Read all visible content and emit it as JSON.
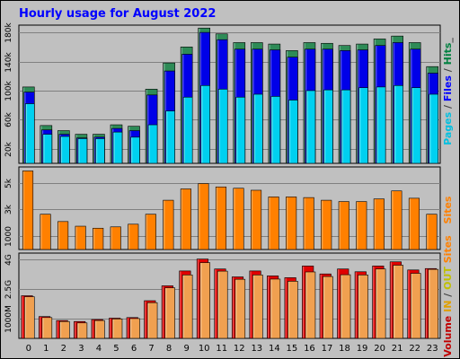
{
  "chart_data": {
    "type": "bar",
    "title": "Hourly usage for August 2022",
    "categories": [
      "0",
      "1",
      "2",
      "3",
      "4",
      "5",
      "6",
      "7",
      "8",
      "9",
      "10",
      "11",
      "12",
      "13",
      "14",
      "15",
      "16",
      "17",
      "18",
      "19",
      "20",
      "21",
      "22",
      "23"
    ],
    "panels": [
      {
        "name": "requests",
        "ylim": [
          0,
          190000
        ],
        "yticks": [
          20000,
          60000,
          100000,
          140000,
          180000
        ],
        "ytick_labels": [
          "20k",
          "60k",
          "100k",
          "140k",
          "180k"
        ],
        "side_label": [
          {
            "text": "Pages",
            "color": "#00c0e0"
          },
          {
            "text": " / ",
            "color": "#404040"
          },
          {
            "text": "Files",
            "color": "#0000ff"
          },
          {
            "text": " / ",
            "color": "#404040"
          },
          {
            "text": "Hits",
            "color": "#008040"
          },
          {
            "text": "_",
            "color": "#404040"
          }
        ],
        "series": [
          {
            "name": "Hits",
            "color": "#2e8b57",
            "values": [
              105000,
              52000,
              45000,
              40000,
              40000,
              53000,
              51000,
              102000,
              138000,
              160000,
              186000,
              178000,
              166000,
              166000,
              164000,
              155000,
              166000,
              165000,
              162000,
              164000,
              171000,
              175000,
              166000,
              133000
            ]
          },
          {
            "name": "Files",
            "color": "#0000e8",
            "values": [
              98000,
              46000,
              40000,
              35000,
              36000,
              48000,
              45000,
              94000,
              127000,
              150000,
              180000,
              170000,
              157000,
              157000,
              156000,
              146000,
              157000,
              157000,
              155000,
              156000,
              162000,
              166000,
              157000,
              124000
            ]
          },
          {
            "name": "Pages",
            "color": "#00d0f0",
            "values": [
              82000,
              40000,
              37000,
              34000,
              34000,
              43000,
              36000,
              53000,
              72000,
              91000,
              107000,
              102000,
              91000,
              95000,
              92000,
              87000,
              100000,
              101000,
              101000,
              104000,
              105000,
              107000,
              104000,
              95000
            ]
          }
        ]
      },
      {
        "name": "sites",
        "ylim": [
          0,
          6200
        ],
        "yticks": [
          1000,
          3000,
          5000
        ],
        "ytick_labels": [
          "1000",
          "3k",
          "5k"
        ],
        "side_label": [
          {
            "text": "Sites",
            "color": "#ff8000"
          }
        ],
        "series": [
          {
            "name": "Sites",
            "color": "#ff8000",
            "values": [
              5900,
              2650,
              2100,
              1750,
              1600,
              1700,
              1900,
              2650,
              3700,
              4550,
              4950,
              4700,
              4600,
              4450,
              3950,
              3950,
              3900,
              3700,
              3600,
              3600,
              3800,
              4400,
              3850,
              2650
            ]
          }
        ]
      },
      {
        "name": "volume",
        "ylim": [
          0,
          4300
        ],
        "yticks": [
          1000,
          2500,
          4000
        ],
        "ytick_labels": [
          "1000M",
          "2.5G",
          "4G"
        ],
        "side_label": [
          {
            "text": "Volume",
            "color": "#c00000"
          },
          {
            "text": " ",
            "color": "#404040"
          },
          {
            "text": "IN",
            "color": "#e0a000"
          },
          {
            "text": " / ",
            "color": "#404040"
          },
          {
            "text": "OUT",
            "color": "#c0c000"
          },
          {
            "text": " ",
            "color": "#404040"
          },
          {
            "text": "Sites",
            "color": "#ff8000"
          }
        ],
        "series": [
          {
            "name": "Volume",
            "color": "#e00000",
            "values": [
              2150,
              1100,
              900,
              850,
              950,
              1020,
              1050,
              1900,
              2650,
              3400,
              4000,
              3500,
              3100,
              3400,
              3150,
              3060,
              3650,
              3250,
              3500,
              3360,
              3650,
              3860,
              3450,
              3520
            ]
          },
          {
            "name": "OUT",
            "color": "#f0a050",
            "values": [
              2100,
              1050,
              850,
              780,
              900,
              980,
              1000,
              1800,
              2550,
              3200,
              3820,
              3390,
              2980,
              3200,
              2990,
              2880,
              3350,
              3120,
              3210,
              3200,
              3500,
              3690,
              3280,
              3480
            ]
          }
        ]
      }
    ]
  }
}
